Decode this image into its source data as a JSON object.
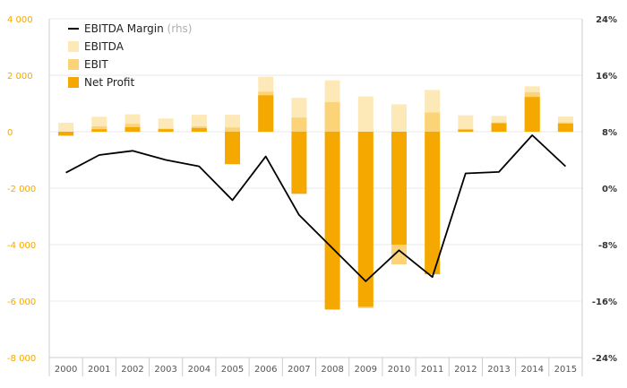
{
  "chart_data": {
    "type": "bar",
    "categories": [
      "2000",
      "2001",
      "2002",
      "2003",
      "2004",
      "2005",
      "2006",
      "2007",
      "2008",
      "2009",
      "2010",
      "2011",
      "2012",
      "2013",
      "2014",
      "2015"
    ],
    "series": [
      {
        "name": "EBITDA",
        "kind": "bar",
        "axis": "left",
        "color": "#fde9b8",
        "values": [
          320,
          530,
          620,
          470,
          600,
          600,
          1950,
          1200,
          1820,
          1250,
          970,
          1480,
          580,
          560,
          1610,
          540
        ]
      },
      {
        "name": "EBIT",
        "kind": "bar",
        "axis": "left",
        "color": "#fbd47a",
        "values": [
          -60,
          190,
          280,
          110,
          190,
          150,
          1420,
          500,
          1050,
          -6250,
          -4700,
          680,
          60,
          330,
          1400,
          330
        ]
      },
      {
        "name": "Net Profit",
        "kind": "bar",
        "axis": "left",
        "color": "#f5a800",
        "values": [
          -140,
          90,
          160,
          90,
          130,
          -1150,
          1290,
          -2200,
          -6300,
          -6200,
          -4000,
          -5050,
          80,
          300,
          1230,
          290
        ]
      },
      {
        "name": "EBITDA Margin",
        "name_note": "(rhs)",
        "kind": "line",
        "axis": "right",
        "color": "#000000",
        "values": [
          2.2,
          4.7,
          5.3,
          4.0,
          3.1,
          -1.7,
          4.5,
          -3.8,
          -8.5,
          -13.2,
          -8.8,
          -12.6,
          2.1,
          2.3,
          7.5,
          3.1
        ]
      }
    ],
    "left_axis": {
      "ylim": [
        -8000,
        4000
      ],
      "ticks": [
        4000,
        2000,
        0,
        -2000,
        -4000,
        -6000,
        -8000
      ],
      "tick_labels": [
        "4 000",
        "2 000",
        "0",
        "-2 000",
        "-4 000",
        "-6 000",
        "-8 000"
      ]
    },
    "right_axis": {
      "ylim": [
        -24,
        24
      ],
      "ticks": [
        24,
        16,
        8,
        0,
        -8,
        -16,
        -24
      ],
      "tick_labels": [
        "24%",
        "16%",
        "8%",
        "0%",
        "-8%",
        "-16%",
        "-24%"
      ]
    },
    "legend": {
      "position": "top-left",
      "entries": [
        "EBITDA Margin",
        "EBITDA",
        "EBIT",
        "Net Profit"
      ]
    },
    "grid": true,
    "colors": {
      "left_ticks": "#f5a800",
      "grid": "#e8e8e8",
      "frame": "#cccccc"
    }
  }
}
